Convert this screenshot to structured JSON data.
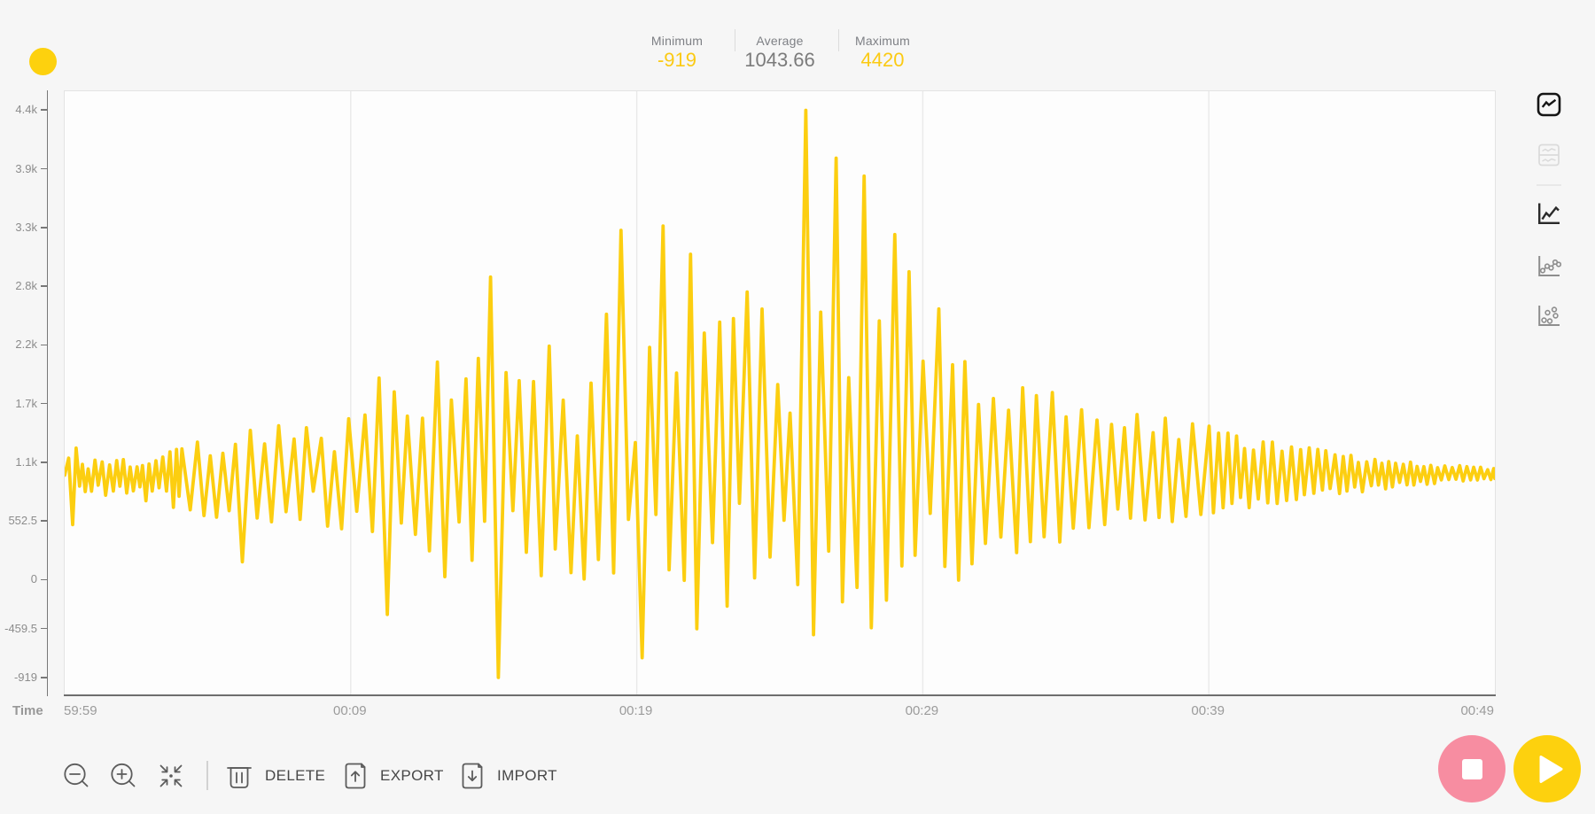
{
  "app": {
    "name": "data-plot-dashboard"
  },
  "header": {
    "series_dot_color": "#fdd10e",
    "stats": [
      {
        "label": "Minimum",
        "value": "-919",
        "highlight": true
      },
      {
        "label": "Average",
        "value": "1043.66",
        "highlight": false
      },
      {
        "label": "Maximum",
        "value": "4420",
        "highlight": true
      }
    ]
  },
  "chart_data": {
    "type": "line",
    "title": "",
    "xlabel": "Time",
    "ylabel": "",
    "line_color": "#fcce10",
    "grid": "vertical-only",
    "x_ticks": [
      {
        "t": 0,
        "label": "59:59"
      },
      {
        "t": 10,
        "label": "00:09"
      },
      {
        "t": 20,
        "label": "00:19"
      },
      {
        "t": 30,
        "label": "00:29"
      },
      {
        "t": 40,
        "label": "00:39"
      },
      {
        "t": 50,
        "label": "00:49"
      }
    ],
    "y_ticks": [
      {
        "value": 4420,
        "label": "4.4k"
      },
      {
        "value": 3867.5,
        "label": "3.9k"
      },
      {
        "value": 3315,
        "label": "3.3k"
      },
      {
        "value": 2762.5,
        "label": "2.8k"
      },
      {
        "value": 2210,
        "label": "2.2k"
      },
      {
        "value": 1657.5,
        "label": "1.7k"
      },
      {
        "value": 1105,
        "label": "1.1k"
      },
      {
        "value": 552.5,
        "label": "552.5"
      },
      {
        "value": 0,
        "label": "0"
      },
      {
        "value": -459.5,
        "label": "-459.5"
      },
      {
        "value": -919,
        "label": "-919"
      }
    ],
    "xlim": [
      0,
      50
    ],
    "ylim": [
      -1078,
      4599
    ],
    "stats": {
      "minimum": -919,
      "average": 1043.66,
      "maximum": 4420
    },
    "points": [
      [
        0.0,
        985
      ],
      [
        0.14,
        1146
      ],
      [
        0.28,
        520
      ],
      [
        0.4,
        1240
      ],
      [
        0.52,
        883
      ],
      [
        0.62,
        1087
      ],
      [
        0.72,
        831
      ],
      [
        0.82,
        1044
      ],
      [
        0.94,
        834
      ],
      [
        1.06,
        1127
      ],
      [
        1.17,
        891
      ],
      [
        1.31,
        1110
      ],
      [
        1.43,
        797
      ],
      [
        1.57,
        1082
      ],
      [
        1.7,
        836
      ],
      [
        1.82,
        1123
      ],
      [
        1.93,
        882
      ],
      [
        2.05,
        1132
      ],
      [
        2.17,
        818
      ],
      [
        2.29,
        1062
      ],
      [
        2.4,
        838
      ],
      [
        2.53,
        1064
      ],
      [
        2.63,
        876
      ],
      [
        2.72,
        1076
      ],
      [
        2.84,
        745
      ],
      [
        2.95,
        1090
      ],
      [
        3.06,
        836
      ],
      [
        3.19,
        1121
      ],
      [
        3.3,
        867
      ],
      [
        3.43,
        1156
      ],
      [
        3.56,
        836
      ],
      [
        3.68,
        1205
      ],
      [
        3.8,
        683
      ],
      [
        3.91,
        1228
      ],
      [
        4.0,
        787
      ],
      [
        4.1,
        1233
      ],
      [
        4.39,
        659
      ],
      [
        4.64,
        1297
      ],
      [
        4.87,
        605
      ],
      [
        5.09,
        1168
      ],
      [
        5.31,
        590
      ],
      [
        5.53,
        1191
      ],
      [
        5.75,
        651
      ],
      [
        5.97,
        1276
      ],
      [
        6.21,
        170
      ],
      [
        6.49,
        1407
      ],
      [
        6.73,
        583
      ],
      [
        6.99,
        1280
      ],
      [
        7.23,
        547
      ],
      [
        7.48,
        1450
      ],
      [
        7.74,
        642
      ],
      [
        8.02,
        1325
      ],
      [
        8.23,
        569
      ],
      [
        8.45,
        1432
      ],
      [
        8.69,
        835
      ],
      [
        8.97,
        1332
      ],
      [
        9.19,
        506
      ],
      [
        9.43,
        1206
      ],
      [
        9.68,
        481
      ],
      [
        9.93,
        1516
      ],
      [
        10.21,
        646
      ],
      [
        10.5,
        1552
      ],
      [
        10.76,
        455
      ],
      [
        10.99,
        1900
      ],
      [
        11.28,
        -325
      ],
      [
        11.52,
        1770
      ],
      [
        11.77,
        535
      ],
      [
        11.98,
        1541
      ],
      [
        12.26,
        428
      ],
      [
        12.51,
        1522
      ],
      [
        12.75,
        273
      ],
      [
        13.03,
        2050
      ],
      [
        13.29,
        30
      ],
      [
        13.52,
        1693
      ],
      [
        13.79,
        545
      ],
      [
        14.03,
        1891
      ],
      [
        14.24,
        184
      ],
      [
        14.46,
        2085
      ],
      [
        14.68,
        552
      ],
      [
        14.89,
        2850
      ],
      [
        15.16,
        -919
      ],
      [
        15.43,
        1951
      ],
      [
        15.67,
        652
      ],
      [
        15.89,
        1875
      ],
      [
        16.14,
        260
      ],
      [
        16.39,
        1866
      ],
      [
        16.66,
        40
      ],
      [
        16.94,
        2200
      ],
      [
        17.15,
        291
      ],
      [
        17.43,
        1691
      ],
      [
        17.7,
        68
      ],
      [
        17.92,
        1355
      ],
      [
        18.16,
        8
      ],
      [
        18.4,
        1852
      ],
      [
        18.66,
        192
      ],
      [
        18.94,
        2500
      ],
      [
        19.19,
        66
      ],
      [
        19.45,
        3290
      ],
      [
        19.71,
        569
      ],
      [
        19.95,
        1293
      ],
      [
        20.19,
        -733
      ],
      [
        20.45,
        2189
      ],
      [
        20.67,
        616
      ],
      [
        20.92,
        3330
      ],
      [
        21.13,
        95
      ],
      [
        21.39,
        1946
      ],
      [
        21.66,
        -4
      ],
      [
        21.88,
        3065
      ],
      [
        22.1,
        -460
      ],
      [
        22.36,
        2323
      ],
      [
        22.65,
        351
      ],
      [
        22.9,
        2426
      ],
      [
        23.16,
        -247
      ],
      [
        23.38,
        2459
      ],
      [
        23.59,
        721
      ],
      [
        23.86,
        2710
      ],
      [
        24.12,
        18
      ],
      [
        24.38,
        2549
      ],
      [
        24.66,
        215
      ],
      [
        24.93,
        1839
      ],
      [
        25.15,
        561
      ],
      [
        25.36,
        1570
      ],
      [
        25.63,
        -44
      ],
      [
        25.91,
        4420
      ],
      [
        26.18,
        -516
      ],
      [
        26.43,
        2520
      ],
      [
        26.71,
        271
      ],
      [
        26.97,
        3970
      ],
      [
        27.19,
        -207
      ],
      [
        27.41,
        1903
      ],
      [
        27.7,
        -71
      ],
      [
        27.95,
        3800
      ],
      [
        28.2,
        -450
      ],
      [
        28.48,
        2437
      ],
      [
        28.73,
        -191
      ],
      [
        29.02,
        3250
      ],
      [
        29.27,
        131
      ],
      [
        29.52,
        2900
      ],
      [
        29.73,
        232
      ],
      [
        30.01,
        2058
      ],
      [
        30.26,
        626
      ],
      [
        30.56,
        2550
      ],
      [
        30.77,
        127
      ],
      [
        31.04,
        2025
      ],
      [
        31.25,
        -3
      ],
      [
        31.47,
        2054
      ],
      [
        31.72,
        152
      ],
      [
        31.95,
        1651
      ],
      [
        32.19,
        343
      ],
      [
        32.47,
        1707
      ],
      [
        32.73,
        403
      ],
      [
        33.0,
        1597
      ],
      [
        33.28,
        257
      ],
      [
        33.49,
        1808
      ],
      [
        33.76,
        360
      ],
      [
        33.97,
        1735
      ],
      [
        34.24,
        406
      ],
      [
        34.53,
        1764
      ],
      [
        34.79,
        357
      ],
      [
        35.01,
        1535
      ],
      [
        35.26,
        487
      ],
      [
        35.55,
        1601
      ],
      [
        35.81,
        492
      ],
      [
        36.09,
        1504
      ],
      [
        36.36,
        521
      ],
      [
        36.6,
        1463
      ],
      [
        36.82,
        667
      ],
      [
        37.05,
        1432
      ],
      [
        37.26,
        581
      ],
      [
        37.49,
        1556
      ],
      [
        37.77,
        564
      ],
      [
        38.05,
        1385
      ],
      [
        38.26,
        588
      ],
      [
        38.48,
        1521
      ],
      [
        38.72,
        549
      ],
      [
        38.95,
        1320
      ],
      [
        39.2,
        598
      ],
      [
        39.43,
        1469
      ],
      [
        39.72,
        616
      ],
      [
        40.01,
        1446
      ],
      [
        40.16,
        632
      ],
      [
        40.34,
        1381
      ],
      [
        40.5,
        679
      ],
      [
        40.67,
        1381
      ],
      [
        40.81,
        719
      ],
      [
        40.97,
        1354
      ],
      [
        41.11,
        776
      ],
      [
        41.25,
        1236
      ],
      [
        41.41,
        680
      ],
      [
        41.56,
        1222
      ],
      [
        41.73,
        762
      ],
      [
        41.9,
        1298
      ],
      [
        42.06,
        725
      ],
      [
        42.22,
        1297
      ],
      [
        42.39,
        719
      ],
      [
        42.56,
        1211
      ],
      [
        42.72,
        747
      ],
      [
        42.89,
        1251
      ],
      [
        43.06,
        756
      ],
      [
        43.21,
        1226
      ],
      [
        43.34,
        802
      ],
      [
        43.51,
        1243
      ],
      [
        43.67,
        815
      ],
      [
        43.81,
        1228
      ],
      [
        43.97,
        846
      ],
      [
        44.09,
        1215
      ],
      [
        44.24,
        860
      ],
      [
        44.41,
        1177
      ],
      [
        44.57,
        813
      ],
      [
        44.7,
        1161
      ],
      [
        44.83,
        836
      ],
      [
        44.97,
        1172
      ],
      [
        45.1,
        874
      ],
      [
        45.23,
        1105
      ],
      [
        45.37,
        829
      ],
      [
        45.52,
        1111
      ],
      [
        45.68,
        886
      ],
      [
        45.81,
        1134
      ],
      [
        45.93,
        893
      ],
      [
        46.05,
        1098
      ],
      [
        46.18,
        857
      ],
      [
        46.29,
        1114
      ],
      [
        46.42,
        875
      ],
      [
        46.53,
        1098
      ],
      [
        46.67,
        918
      ],
      [
        46.8,
        1088
      ],
      [
        46.93,
        894
      ],
      [
        47.05,
        1108
      ],
      [
        47.17,
        893
      ],
      [
        47.28,
        1068
      ],
      [
        47.4,
        927
      ],
      [
        47.52,
        1066
      ],
      [
        47.63,
        900
      ],
      [
        47.76,
        1078
      ],
      [
        47.89,
        907
      ],
      [
        48.0,
        1056
      ],
      [
        48.13,
        941
      ],
      [
        48.25,
        1073
      ],
      [
        48.39,
        944
      ],
      [
        48.51,
        1058
      ],
      [
        48.64,
        947
      ],
      [
        48.77,
        1075
      ],
      [
        48.89,
        931
      ],
      [
        49.02,
        1066
      ],
      [
        49.15,
        941
      ],
      [
        49.26,
        1060
      ],
      [
        49.39,
        940
      ],
      [
        49.5,
        1060
      ],
      [
        49.62,
        953
      ],
      [
        49.75,
        1037
      ],
      [
        49.86,
        944
      ],
      [
        49.96,
        1048
      ],
      [
        50.0,
        954
      ]
    ]
  },
  "view_rail": {
    "items": [
      {
        "icon": "plot-framed-icon",
        "state": "selected"
      },
      {
        "icon": "multiplot-icon",
        "state": "disabled"
      },
      {
        "icon": "line-chart-icon",
        "state": "active"
      },
      {
        "icon": "line-scatter-icon",
        "state": "normal"
      },
      {
        "icon": "scatter-chart-icon",
        "state": "normal"
      }
    ]
  },
  "toolbar": {
    "zoom_out": {
      "icon": "zoom-out-icon"
    },
    "zoom_in": {
      "icon": "zoom-in-icon"
    },
    "fit": {
      "icon": "fit-to-view-icon"
    },
    "delete": {
      "icon": "trash-icon",
      "label": "DELETE"
    },
    "export": {
      "icon": "file-export-icon",
      "label": "EXPORT"
    },
    "import": {
      "icon": "file-import-icon",
      "label": "IMPORT"
    }
  },
  "transport": {
    "stop": {
      "icon": "stop-icon",
      "color": "#f78da1"
    },
    "play": {
      "icon": "play-icon",
      "color": "#fdd10e"
    }
  }
}
